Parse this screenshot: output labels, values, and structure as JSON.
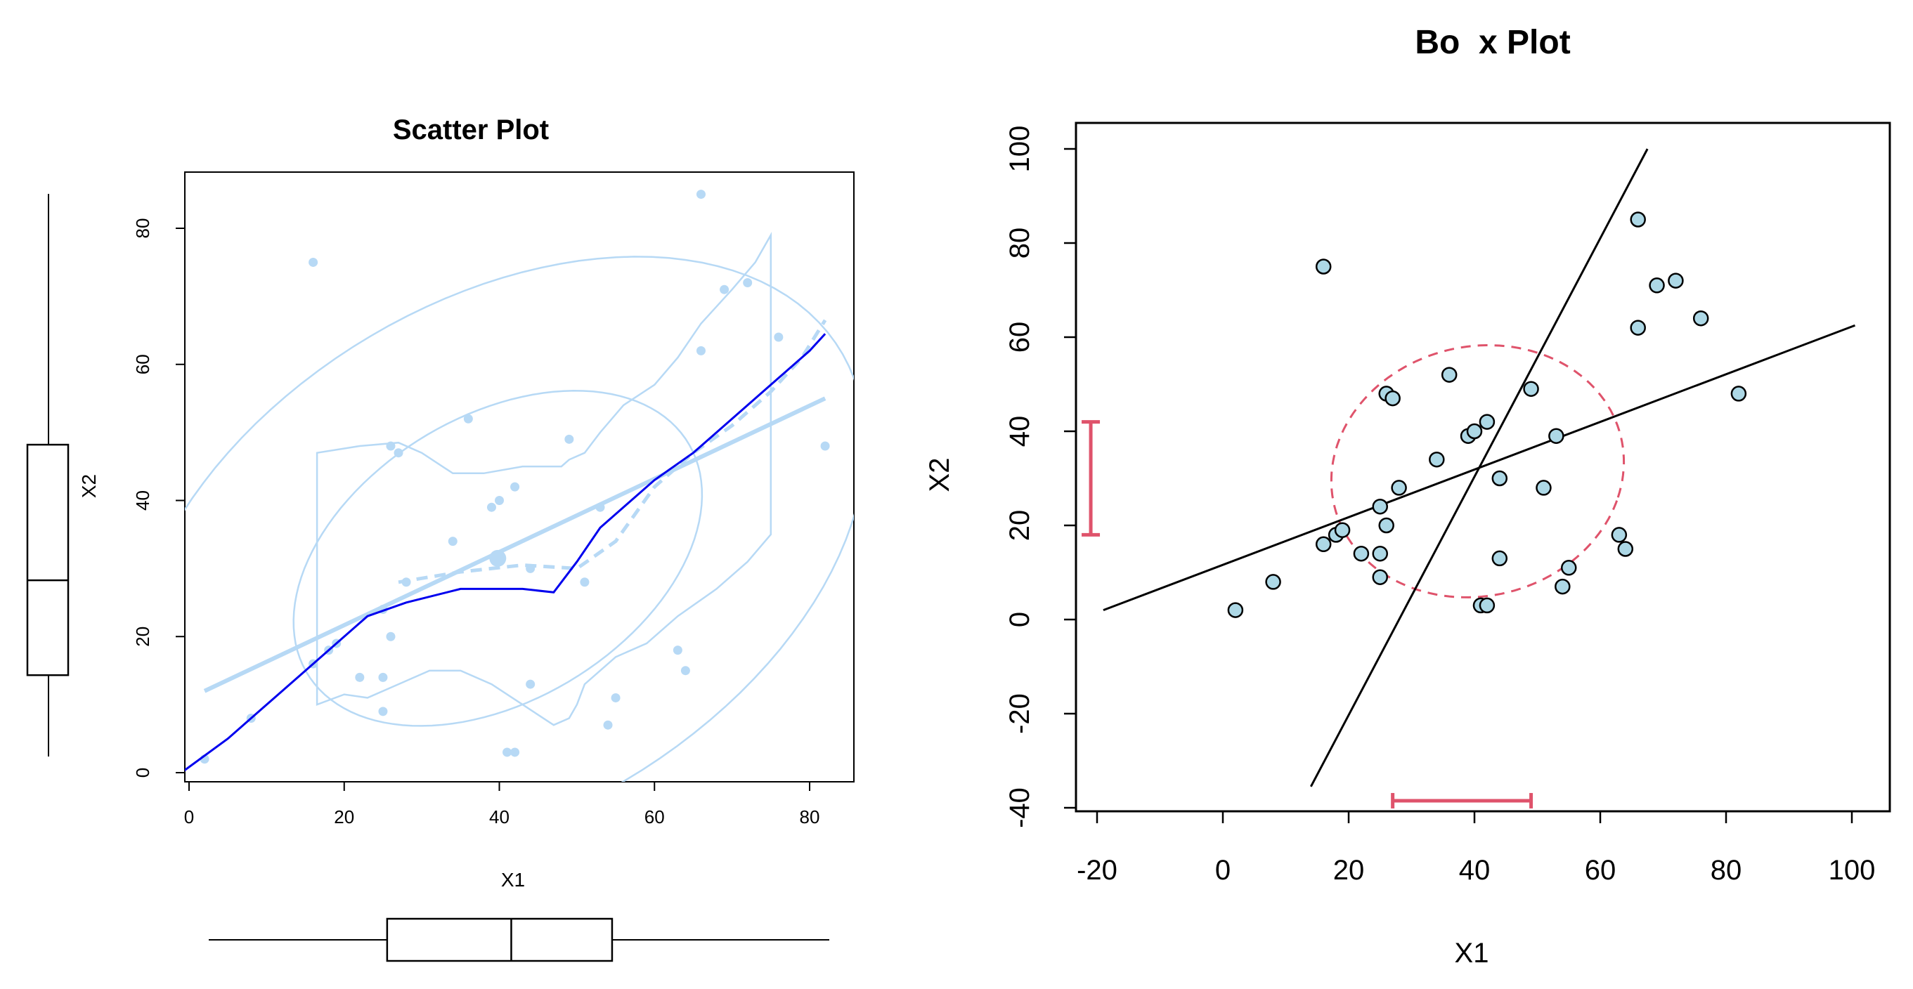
{
  "colors": {
    "light": "#b7d9f5",
    "dark": "#0000ee",
    "point_fill": "#add8e6",
    "red": "#df536b",
    "black": "#000000"
  },
  "chart_data": [
    {
      "type": "scatter",
      "title": "Scatter Plot",
      "xlabel": "X1",
      "ylabel": "X2",
      "xlim": [
        -1,
        85
      ],
      "ylim": [
        -1,
        88
      ],
      "xticks": [
        0,
        20,
        40,
        60,
        80
      ],
      "yticks": [
        0,
        20,
        40,
        60,
        80
      ],
      "grid": false,
      "points": [
        [
          2,
          2
        ],
        [
          8,
          8
        ],
        [
          16,
          16
        ],
        [
          16,
          75
        ],
        [
          18,
          18
        ],
        [
          19,
          19
        ],
        [
          22,
          14
        ],
        [
          25,
          9
        ],
        [
          25,
          14
        ],
        [
          25,
          24
        ],
        [
          26,
          20
        ],
        [
          26,
          48
        ],
        [
          27,
          47
        ],
        [
          28,
          28
        ],
        [
          34,
          34
        ],
        [
          36,
          52
        ],
        [
          39,
          39
        ],
        [
          40,
          40
        ],
        [
          41,
          3
        ],
        [
          42,
          3
        ],
        [
          42,
          42
        ],
        [
          44,
          13
        ],
        [
          44,
          30
        ],
        [
          49,
          49
        ],
        [
          51,
          28
        ],
        [
          53,
          39
        ],
        [
          54,
          7
        ],
        [
          55,
          11
        ],
        [
          63,
          18
        ],
        [
          64,
          15
        ],
        [
          66,
          62
        ],
        [
          66,
          85
        ],
        [
          69,
          71
        ],
        [
          72,
          72
        ],
        [
          76,
          64
        ],
        [
          82,
          48
        ]
      ],
      "centroid": [
        39.8,
        31.5
      ],
      "regression_line": {
        "x": [
          2,
          82
        ],
        "y": [
          12,
          55
        ]
      },
      "smoother_line": {
        "x": [
          -1,
          5,
          10,
          15,
          20,
          23,
          28,
          35,
          38,
          40,
          43,
          47,
          50,
          53,
          60,
          65,
          70,
          75,
          80,
          82
        ],
        "y": [
          0,
          5,
          10,
          15,
          20,
          23,
          25,
          27,
          27,
          27,
          27,
          26.5,
          31,
          36,
          43,
          47,
          52,
          57,
          62,
          64.5
        ]
      },
      "dashed_smoother": {
        "x": [
          27,
          35,
          43,
          50,
          55,
          60,
          65,
          70,
          75,
          79,
          82
        ],
        "y": [
          28,
          29.5,
          30.5,
          30,
          34,
          42,
          47,
          51,
          56,
          61,
          66.5
        ]
      },
      "marginal_boxplot_x": {
        "whisker_low": 2,
        "q1": 25,
        "median": 41,
        "q3": 54,
        "whisker_high": 82
      },
      "marginal_boxplot_y": {
        "whisker_low": 2,
        "q1": 14,
        "median": 28,
        "q3": 48,
        "whisker_high": 85
      }
    },
    {
      "type": "scatter",
      "title": "Bo  x Plot",
      "xlabel": "X1",
      "ylabel": "X2",
      "xlim": [
        -25,
        105
      ],
      "ylim": [
        -40,
        105
      ],
      "xticks": [
        -20,
        0,
        20,
        40,
        60,
        80,
        100
      ],
      "yticks": [
        -40,
        -20,
        0,
        20,
        40,
        60,
        80,
        100
      ],
      "grid": false,
      "points": [
        [
          2,
          2
        ],
        [
          8,
          8
        ],
        [
          16,
          16
        ],
        [
          16,
          75
        ],
        [
          18,
          18
        ],
        [
          19,
          19
        ],
        [
          22,
          14
        ],
        [
          25,
          9
        ],
        [
          25,
          14
        ],
        [
          25,
          24
        ],
        [
          26,
          20
        ],
        [
          26,
          48
        ],
        [
          27,
          47
        ],
        [
          28,
          28
        ],
        [
          34,
          34
        ],
        [
          36,
          52
        ],
        [
          39,
          39
        ],
        [
          40,
          40
        ],
        [
          41,
          3
        ],
        [
          42,
          3
        ],
        [
          42,
          42
        ],
        [
          44,
          13
        ],
        [
          44,
          30
        ],
        [
          49,
          49
        ],
        [
          51,
          28
        ],
        [
          53,
          39
        ],
        [
          54,
          7
        ],
        [
          55,
          11
        ],
        [
          63,
          18
        ],
        [
          64,
          15
        ],
        [
          66,
          62
        ],
        [
          66,
          85
        ],
        [
          69,
          71
        ],
        [
          72,
          72
        ],
        [
          76,
          64
        ],
        [
          82,
          48
        ]
      ],
      "line_a": {
        "x": [
          -19,
          100.5
        ],
        "y": [
          2,
          62.5
        ]
      },
      "line_b": {
        "x": [
          14,
          67.5
        ],
        "y": [
          -35.5,
          100
        ]
      },
      "ellipse": {
        "center": [
          40.5,
          31.5
        ],
        "rx": 23,
        "ry": 27,
        "rotate_deg": -14
      },
      "x_interval": {
        "from": 27,
        "to": 49,
        "at_y": -38.5
      },
      "y_interval": {
        "from": 18,
        "to": 42,
        "at_x": -21
      }
    }
  ]
}
